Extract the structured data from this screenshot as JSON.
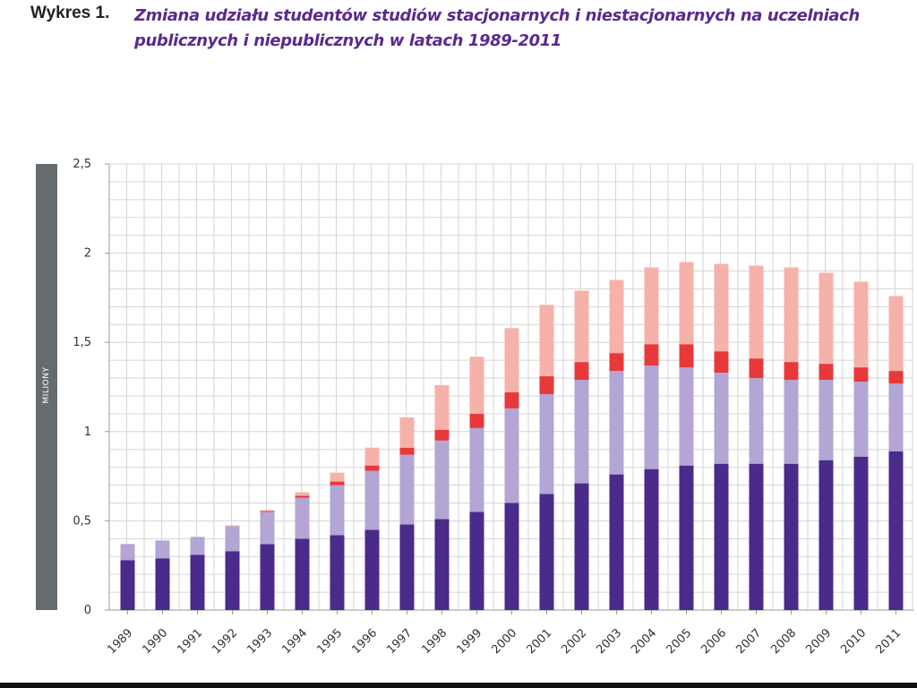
{
  "header": {
    "label": "Wykres 1.",
    "title_line1": "Zmiana udziału studentów studiów stacjonarnych i niestacjonarnych na uczelniach",
    "title_line2": "publicznych i niepublicznych w latach 1989-2011"
  },
  "chart_data": {
    "type": "bar",
    "stacked": true,
    "title": "Zmiana udziału studentów studiów stacjonarnych i niestacjonarnych na uczelniach publicznych i niepublicznych w latach 1989-2011",
    "ylabel": "MILIONY",
    "xlabel": "",
    "ylim": [
      0,
      2.5
    ],
    "yticks": [
      0,
      0.5,
      1,
      1.5,
      2,
      2.5
    ],
    "ytick_labels": [
      "0",
      "0,5",
      "1",
      "1,5",
      "2",
      "2,5"
    ],
    "grid": true,
    "categories": [
      "1989",
      "1990",
      "1991",
      "1992",
      "1993",
      "1994",
      "1995",
      "1996",
      "1997",
      "1998",
      "1999",
      "2000",
      "2001",
      "2002",
      "2003",
      "2004",
      "2005",
      "2006",
      "2007",
      "2008",
      "2009",
      "2010",
      "2011"
    ],
    "series": [
      {
        "name": "",
        "color": "#4a2a8a",
        "values": [
          0.28,
          0.29,
          0.31,
          0.33,
          0.37,
          0.4,
          0.42,
          0.45,
          0.48,
          0.51,
          0.55,
          0.6,
          0.65,
          0.71,
          0.76,
          0.79,
          0.81,
          0.82,
          0.82,
          0.82,
          0.84,
          0.86,
          0.89
        ]
      },
      {
        "name": "",
        "color": "#b3a5d4",
        "values": [
          0.09,
          0.1,
          0.1,
          0.14,
          0.18,
          0.23,
          0.28,
          0.33,
          0.39,
          0.44,
          0.47,
          0.53,
          0.56,
          0.58,
          0.58,
          0.58,
          0.55,
          0.51,
          0.48,
          0.47,
          0.45,
          0.42,
          0.38
        ]
      },
      {
        "name": "",
        "color": "#e8393a",
        "values": [
          0,
          0,
          0,
          0,
          0.005,
          0.01,
          0.02,
          0.03,
          0.04,
          0.06,
          0.08,
          0.09,
          0.1,
          0.1,
          0.1,
          0.12,
          0.13,
          0.12,
          0.11,
          0.1,
          0.09,
          0.08,
          0.07
        ]
      },
      {
        "name": "",
        "color": "#f6b2aa",
        "values": [
          0,
          0,
          0,
          0.005,
          0.005,
          0.02,
          0.05,
          0.1,
          0.17,
          0.25,
          0.32,
          0.36,
          0.4,
          0.4,
          0.41,
          0.43,
          0.46,
          0.49,
          0.52,
          0.53,
          0.51,
          0.48,
          0.42
        ]
      }
    ]
  }
}
